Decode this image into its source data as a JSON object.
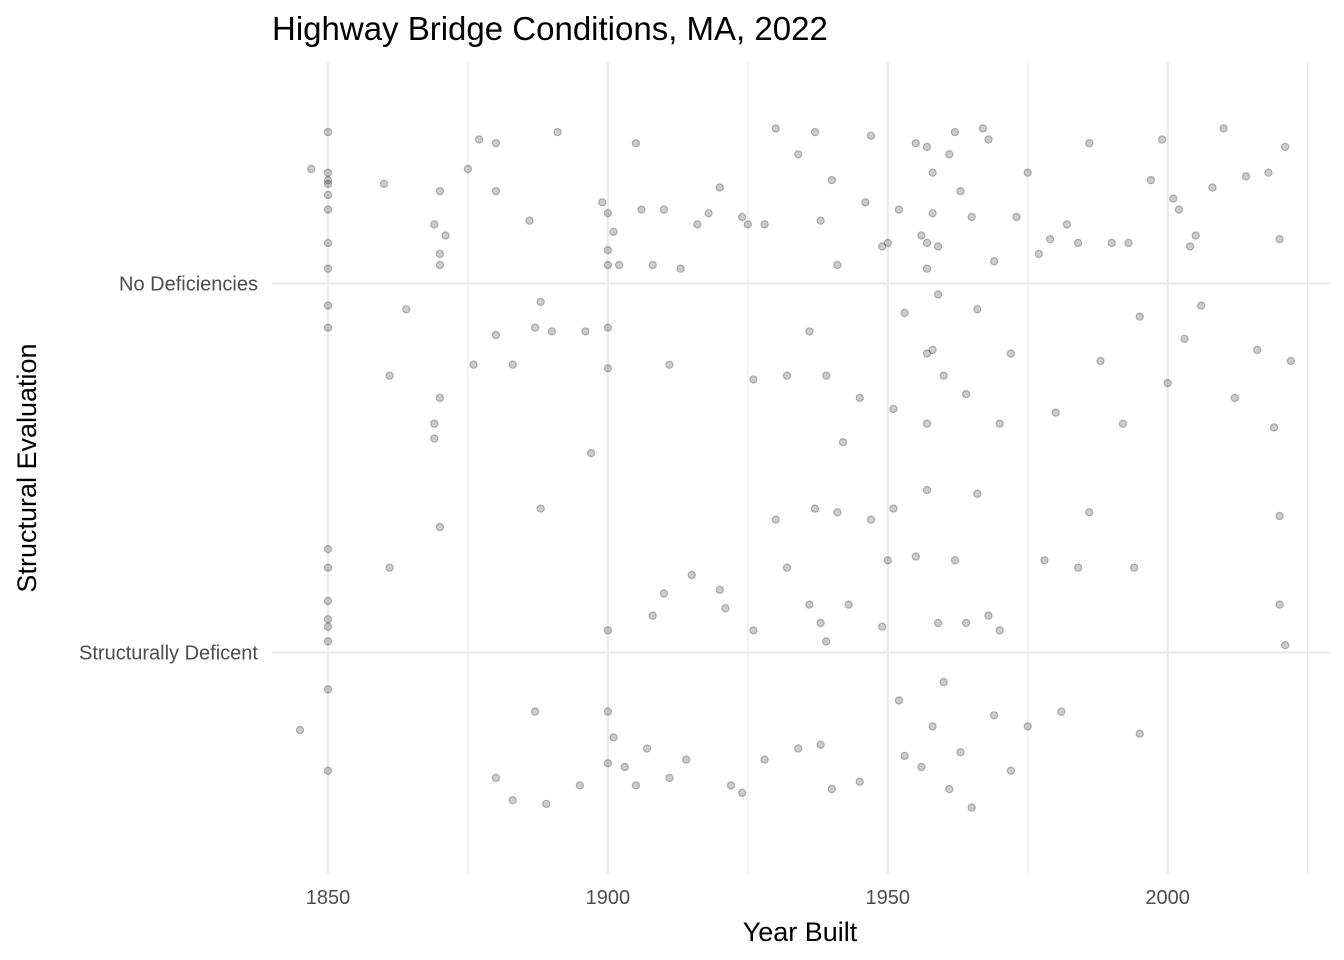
{
  "chart_data": {
    "type": "scatter",
    "title": "Highway Bridge Conditions, MA, 2022",
    "xlabel": "Year Built",
    "ylabel": "Structural Evaluation",
    "x_ticks": [
      1850,
      1900,
      1950,
      2000
    ],
    "x_minor_ticks": [
      1875,
      1925,
      1975,
      2025
    ],
    "xlim": [
      1840,
      2029
    ],
    "y_categories": [
      "Structurally Deficent",
      "No Deficiencies"
    ],
    "jitter_height": 0.4,
    "grid": true,
    "legend": "none",
    "point_color": "#000000",
    "point_opacity": 0.2,
    "series": [
      {
        "category": "No Deficiencies",
        "points": [
          [
            1847,
            0.31
          ],
          [
            1850,
            -0.12
          ],
          [
            1850,
            -0.06
          ],
          [
            1850,
            0.04
          ],
          [
            1850,
            0.11
          ],
          [
            1850,
            0.2
          ],
          [
            1850,
            0.24
          ],
          [
            1850,
            0.27
          ],
          [
            1850,
            0.28
          ],
          [
            1850,
            0.3
          ],
          [
            1850,
            0.41
          ],
          [
            1860,
            0.27
          ],
          [
            1861,
            -0.25
          ],
          [
            1864,
            -0.07
          ],
          [
            1869,
            0.16
          ],
          [
            1869,
            -0.38
          ],
          [
            1869,
            -0.42
          ],
          [
            1870,
            0.25
          ],
          [
            1870,
            0.08
          ],
          [
            1870,
            0.05
          ],
          [
            1870,
            -0.31
          ],
          [
            1871,
            0.13
          ],
          [
            1875,
            0.31
          ],
          [
            1876,
            -0.22
          ],
          [
            1877,
            0.39
          ],
          [
            1880,
            0.38
          ],
          [
            1880,
            0.25
          ],
          [
            1880,
            -0.14
          ],
          [
            1883,
            -0.22
          ],
          [
            1886,
            0.17
          ],
          [
            1887,
            -0.12
          ],
          [
            1888,
            -0.05
          ],
          [
            1890,
            -0.13
          ],
          [
            1891,
            0.41
          ],
          [
            1896,
            -0.13
          ],
          [
            1897,
            -0.46
          ],
          [
            1899,
            0.22
          ],
          [
            1900,
            0.19
          ],
          [
            1900,
            0.09
          ],
          [
            1900,
            0.05
          ],
          [
            1900,
            -0.12
          ],
          [
            1900,
            -0.23
          ],
          [
            1901,
            0.14
          ],
          [
            1902,
            0.05
          ],
          [
            1905,
            0.38
          ],
          [
            1906,
            0.2
          ],
          [
            1908,
            0.05
          ],
          [
            1910,
            0.2
          ],
          [
            1911,
            -0.22
          ],
          [
            1913,
            0.04
          ],
          [
            1916,
            0.16
          ],
          [
            1918,
            0.19
          ],
          [
            1920,
            0.26
          ],
          [
            1924,
            0.18
          ],
          [
            1925,
            0.16
          ],
          [
            1926,
            -0.26
          ],
          [
            1928,
            0.16
          ],
          [
            1930,
            0.42
          ],
          [
            1932,
            -0.25
          ],
          [
            1934,
            0.35
          ],
          [
            1936,
            -0.13
          ],
          [
            1937,
            0.41
          ],
          [
            1938,
            0.17
          ],
          [
            1939,
            -0.25
          ],
          [
            1940,
            0.28
          ],
          [
            1941,
            0.05
          ],
          [
            1942,
            -0.43
          ],
          [
            1945,
            -0.31
          ],
          [
            1946,
            0.22
          ],
          [
            1947,
            0.4
          ],
          [
            1949,
            0.1
          ],
          [
            1950,
            0.11
          ],
          [
            1951,
            -0.34
          ],
          [
            1952,
            0.2
          ],
          [
            1953,
            -0.08
          ],
          [
            1955,
            0.38
          ],
          [
            1956,
            0.13
          ],
          [
            1957,
            0.11
          ],
          [
            1957,
            -0.19
          ],
          [
            1957,
            -0.38
          ],
          [
            1957,
            0.37
          ],
          [
            1957,
            0.04
          ],
          [
            1958,
            -0.18
          ],
          [
            1958,
            0.3
          ],
          [
            1958,
            0.19
          ],
          [
            1959,
            -0.03
          ],
          [
            1959,
            0.1
          ],
          [
            1960,
            -0.25
          ],
          [
            1961,
            0.35
          ],
          [
            1962,
            0.41
          ],
          [
            1963,
            0.25
          ],
          [
            1964,
            -0.3
          ],
          [
            1965,
            0.18
          ],
          [
            1966,
            -0.07
          ],
          [
            1967,
            0.42
          ],
          [
            1968,
            0.39
          ],
          [
            1969,
            0.06
          ],
          [
            1970,
            -0.38
          ],
          [
            1972,
            -0.19
          ],
          [
            1973,
            0.18
          ],
          [
            1975,
            0.3
          ],
          [
            1977,
            0.08
          ],
          [
            1979,
            0.12
          ],
          [
            1980,
            -0.35
          ],
          [
            1982,
            0.16
          ],
          [
            1984,
            0.11
          ],
          [
            1986,
            0.38
          ],
          [
            1988,
            -0.21
          ],
          [
            1990,
            0.11
          ],
          [
            1992,
            -0.38
          ],
          [
            1993,
            0.11
          ],
          [
            1995,
            -0.09
          ],
          [
            1997,
            0.28
          ],
          [
            1999,
            0.39
          ],
          [
            2000,
            -0.27
          ],
          [
            2001,
            0.23
          ],
          [
            2002,
            0.2
          ],
          [
            2003,
            -0.15
          ],
          [
            2004,
            0.1
          ],
          [
            2005,
            0.13
          ],
          [
            2006,
            -0.06
          ],
          [
            2008,
            0.26
          ],
          [
            2010,
            0.42
          ],
          [
            2012,
            -0.31
          ],
          [
            2014,
            0.29
          ],
          [
            2016,
            -0.18
          ],
          [
            2018,
            0.3
          ],
          [
            2019,
            -0.39
          ],
          [
            2020,
            0.12
          ],
          [
            2021,
            0.37
          ],
          [
            2022,
            -0.21
          ]
        ]
      },
      {
        "category": "Structurally Deficent",
        "points": [
          [
            1845,
            -0.21
          ],
          [
            1850,
            -0.1
          ],
          [
            1850,
            -0.32
          ],
          [
            1850,
            0.28
          ],
          [
            1850,
            0.23
          ],
          [
            1850,
            0.14
          ],
          [
            1850,
            0.09
          ],
          [
            1850,
            0.07
          ],
          [
            1850,
            0.03
          ],
          [
            1861,
            0.23
          ],
          [
            1870,
            0.34
          ],
          [
            1880,
            -0.34
          ],
          [
            1883,
            -0.4
          ],
          [
            1887,
            -0.16
          ],
          [
            1888,
            0.39
          ],
          [
            1889,
            -0.41
          ],
          [
            1895,
            -0.36
          ],
          [
            1900,
            0.06
          ],
          [
            1900,
            -0.16
          ],
          [
            1900,
            -0.3
          ],
          [
            1901,
            -0.23
          ],
          [
            1903,
            -0.31
          ],
          [
            1905,
            -0.36
          ],
          [
            1907,
            -0.26
          ],
          [
            1908,
            0.1
          ],
          [
            1910,
            0.16
          ],
          [
            1911,
            -0.34
          ],
          [
            1914,
            -0.29
          ],
          [
            1915,
            0.21
          ],
          [
            1920,
            0.17
          ],
          [
            1921,
            0.12
          ],
          [
            1922,
            -0.36
          ],
          [
            1924,
            -0.38
          ],
          [
            1926,
            0.06
          ],
          [
            1928,
            -0.29
          ],
          [
            1930,
            0.36
          ],
          [
            1932,
            0.23
          ],
          [
            1934,
            -0.26
          ],
          [
            1936,
            0.13
          ],
          [
            1937,
            0.39
          ],
          [
            1938,
            0.08
          ],
          [
            1938,
            -0.25
          ],
          [
            1939,
            0.03
          ],
          [
            1940,
            -0.37
          ],
          [
            1941,
            0.38
          ],
          [
            1943,
            0.13
          ],
          [
            1945,
            -0.35
          ],
          [
            1947,
            0.36
          ],
          [
            1949,
            0.07
          ],
          [
            1950,
            0.25
          ],
          [
            1951,
            0.39
          ],
          [
            1952,
            -0.13
          ],
          [
            1953,
            -0.28
          ],
          [
            1955,
            0.26
          ],
          [
            1956,
            -0.31
          ],
          [
            1957,
            0.44
          ],
          [
            1958,
            -0.2
          ],
          [
            1959,
            0.08
          ],
          [
            1960,
            -0.08
          ],
          [
            1961,
            -0.37
          ],
          [
            1962,
            0.25
          ],
          [
            1963,
            -0.27
          ],
          [
            1964,
            0.08
          ],
          [
            1965,
            -0.42
          ],
          [
            1966,
            0.43
          ],
          [
            1968,
            0.1
          ],
          [
            1969,
            -0.17
          ],
          [
            1970,
            0.06
          ],
          [
            1972,
            -0.32
          ],
          [
            1975,
            -0.2
          ],
          [
            1978,
            0.25
          ],
          [
            1981,
            -0.16
          ],
          [
            1984,
            0.23
          ],
          [
            1986,
            0.38
          ],
          [
            1994,
            0.23
          ],
          [
            1995,
            -0.22
          ],
          [
            2020,
            0.37
          ],
          [
            2020,
            0.13
          ],
          [
            2021,
            0.02
          ]
        ]
      }
    ]
  }
}
